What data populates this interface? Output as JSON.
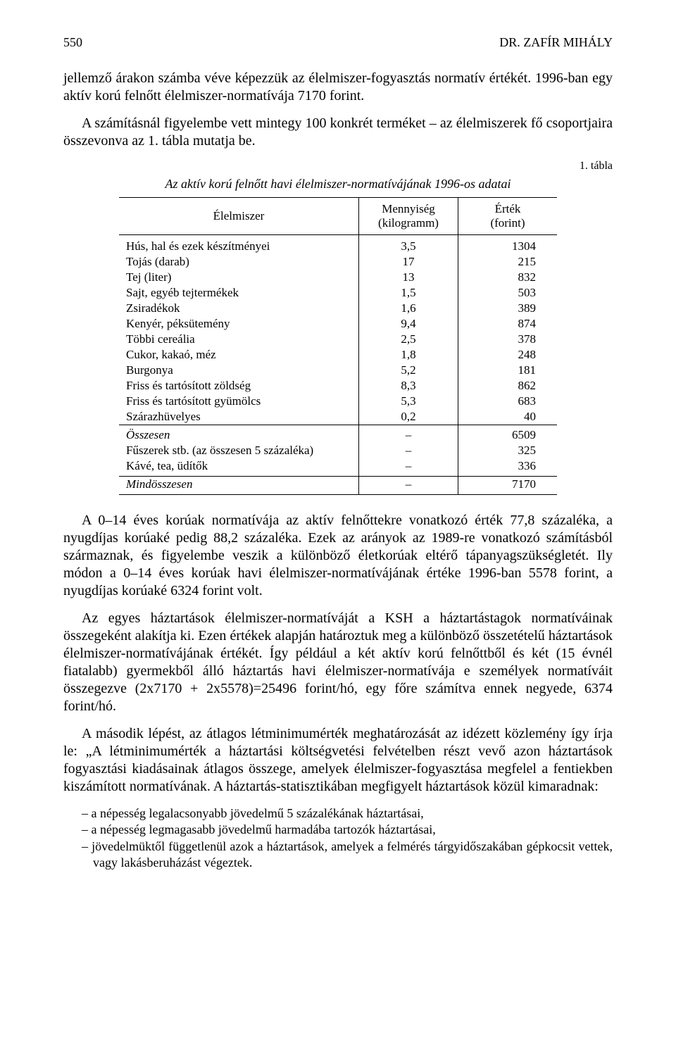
{
  "header": {
    "page_number": "550",
    "author": "DR. ZAFÍR MIHÁLY"
  },
  "paragraphs": {
    "p1": "jellemző árakon számba véve képezzük az élelmiszer-fogyasztás normatív értékét. 1996-ban egy aktív korú felnőtt élelmiszer-normatívája 7170 forint.",
    "p2": "A számításnál figyelembe vett mintegy 100 konkrét terméket – az élelmiszerek fő csoportjaira összevonva az 1. tábla mutatja be.",
    "p3": "A 0–14 éves korúak normatívája az aktív felnőttekre vonatkozó érték 77,8 százaléka, a nyugdíjas korúaké pedig 88,2 százaléka. Ezek az arányok az 1989-re vonatkozó számításból származnak, és figyelembe veszik a különböző életkorúak eltérő tápanyagszükségletét. Ily módon a 0–14 éves korúak havi élelmiszer-normatívájának értéke 1996-ban 5578 forint, a nyugdíjas korúaké 6324 forint volt.",
    "p4": "Az egyes háztartások élelmiszer-normatíváját a KSH a háztartástagok normatíváinak összegeként alakítja ki. Ezen értékek alapján határoztuk meg a különböző összetételű háztartások élelmiszer-normatívájának értékét. Így például a két aktív korú felnőttből és két (15 évnél fiatalabb) gyermekből álló háztartás havi élelmiszer-normatívája e személyek normatíváit összegezve (2x7170 + 2x5578)=25496 forint/hó, egy főre számítva ennek negyede, 6374 forint/hó.",
    "p5": "A második lépést, az átlagos létminimumérték meghatározását az idézett közlemény így írja le: „A létminimumérték a háztartási költségvetési felvételben részt vevő azon háztartások fogyasztási kiadásainak átlagos összege, amelyek élelmiszer-fogyasztása megfelel a fentiekben kiszámított normatívának. A háztartás-statisztikában megfigyelt háztartások közül kimaradnak:"
  },
  "table": {
    "label": "1. tábla",
    "caption": "Az aktív korú felnőtt havi élelmiszer-normatívájának 1996-os adatai",
    "head": {
      "c1": "Élelmiszer",
      "c2a": "Mennyiség",
      "c2b": "(kilogramm)",
      "c3a": "Érték",
      "c3b": "(forint)"
    },
    "rows": [
      {
        "label": "Hús, hal és ezek készítményei",
        "qty": "3,5",
        "val": "1304"
      },
      {
        "label": "Tojás (darab)",
        "qty": "17",
        "val": "215"
      },
      {
        "label": "Tej (liter)",
        "qty": "13",
        "val": "832"
      },
      {
        "label": "Sajt, egyéb tejtermékek",
        "qty": "1,5",
        "val": "503"
      },
      {
        "label": "Zsiradékok",
        "qty": "1,6",
        "val": "389"
      },
      {
        "label": "Kenyér, péksütemény",
        "qty": "9,4",
        "val": "874"
      },
      {
        "label": "Többi cereália",
        "qty": "2,5",
        "val": "378"
      },
      {
        "label": "Cukor, kakaó, méz",
        "qty": "1,8",
        "val": "248"
      },
      {
        "label": "Burgonya",
        "qty": "5,2",
        "val": "181"
      },
      {
        "label": "Friss és tartósított zöldség",
        "qty": "8,3",
        "val": "862"
      },
      {
        "label": "Friss és tartósított gyümölcs",
        "qty": "5,3",
        "val": "683"
      },
      {
        "label": "Szárazhüvelyes",
        "qty": "0,2",
        "val": "40"
      }
    ],
    "subtotal": {
      "label": "Összesen",
      "qty": "–",
      "val": "6509"
    },
    "extra1": {
      "label": "Fűszerek stb. (az összesen 5 százaléka)",
      "qty": "–",
      "val": "325"
    },
    "extra2": {
      "label": "Kávé, tea, üdítők",
      "qty": "–",
      "val": "336"
    },
    "grand": {
      "label": "Mindösszesen",
      "qty": "–",
      "val": "7170"
    }
  },
  "list": {
    "i1": "– a népesség legalacsonyabb jövedelmű 5 százalékának háztartásai,",
    "i2": "– a népesség legmagasabb jövedelmű harmadába tartozók háztartásai,",
    "i3": "– jövedelmüktől függetlenül azok a háztartások, amelyek a felmérés tárgyidőszakában gépkocsit vettek, vagy lakásberuházást végeztek."
  }
}
